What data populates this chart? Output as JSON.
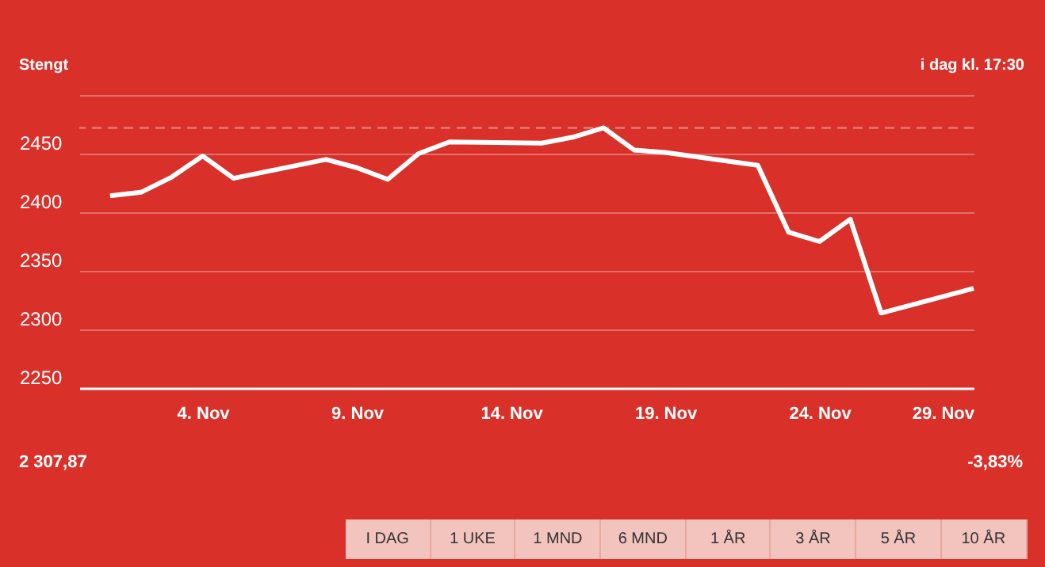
{
  "chart_data": {
    "type": "line",
    "subtitle": "Stengt",
    "annotations": [
      "i dag kl. 17:30",
      "2 307,87",
      "-3,83%",
      "I DAG",
      "1 UKE",
      "1 MND",
      "6 MND",
      "1 ÅR",
      "3 ÅR",
      "5 ÅR",
      "10 ÅR"
    ],
    "x": [
      "--11-01",
      "--11-02",
      "--11-03",
      "--11-04",
      "--11-05",
      "--11-08",
      "--11-09",
      "--11-10",
      "--11-11",
      "--11-12",
      "--11-15",
      "--11-16",
      "--11-17",
      "--11-18",
      "--11-19",
      "--11-22",
      "--11-23",
      "--11-24",
      "--11-25",
      "--11-26",
      "--11-29"
    ],
    "series": [
      {
        "color": "#ffffff",
        "values": [
          2414,
          2417,
          2430,
          2448,
          2429,
          2445,
          2438,
          2428,
          2450,
          2460,
          2459,
          2464,
          2472,
          2453,
          2451,
          2440,
          2383,
          2375,
          2394,
          2314,
          2335
        ]
      }
    ],
    "xlim": [
      "--10-31",
      "--11-29"
    ],
    "xticks": [
      {
        "value": "--11-04",
        "label": "4. Nov"
      },
      {
        "value": "--11-09",
        "label": "9. Nov"
      },
      {
        "value": "--11-14",
        "label": "14. Nov"
      },
      {
        "value": "--11-19",
        "label": "19. Nov"
      },
      {
        "value": "--11-24",
        "label": "24. Nov"
      },
      {
        "value": "--11-29",
        "label": "29. Nov"
      }
    ],
    "ylim": [
      2250,
      2500
    ],
    "yticks": [
      2250,
      2300,
      2350,
      2400,
      2450,
      {
        "value": 2500,
        "label": null
      }
    ],
    "ref_lines": [
      {
        "axis": "y",
        "value": 2472,
        "line_style": "dashed"
      }
    ],
    "grid": "y",
    "marker": "none",
    "line_style": "solid"
  }
}
